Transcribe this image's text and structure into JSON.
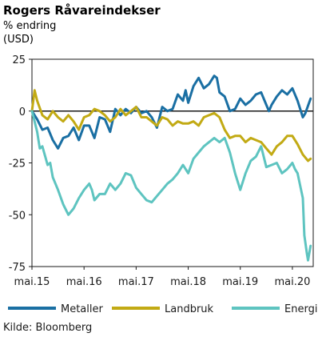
{
  "chart_data": {
    "type": "line",
    "title": "Rogers Råvareindekser",
    "subtitle": "% endring",
    "unit": "(USD)",
    "source": "Kilde: Bloomberg",
    "ylim": [
      -75,
      25
    ],
    "yticks": [
      25,
      0,
      -25,
      -50,
      -75
    ],
    "xlim": [
      2015.0,
      2020.4
    ],
    "xticks": [
      {
        "label": "mai.15",
        "x": 2015.0
      },
      {
        "label": "mai.16",
        "x": 2016.0
      },
      {
        "label": "mai.17",
        "x": 2017.0
      },
      {
        "label": "mai.18",
        "x": 2018.0
      },
      {
        "label": "mai.19",
        "x": 2019.0
      },
      {
        "label": "mai.20",
        "x": 2020.0
      }
    ],
    "legend_position": "bottom",
    "series": [
      {
        "name": "Metaller",
        "color": "#1a6fa3",
        "points": [
          [
            2015.0,
            0
          ],
          [
            2015.1,
            -4
          ],
          [
            2015.2,
            -9
          ],
          [
            2015.3,
            -8
          ],
          [
            2015.4,
            -14
          ],
          [
            2015.5,
            -18
          ],
          [
            2015.6,
            -13
          ],
          [
            2015.7,
            -12
          ],
          [
            2015.8,
            -8
          ],
          [
            2015.9,
            -14
          ],
          [
            2016.0,
            -7
          ],
          [
            2016.1,
            -7
          ],
          [
            2016.2,
            -13
          ],
          [
            2016.3,
            -3
          ],
          [
            2016.4,
            -4
          ],
          [
            2016.5,
            -10
          ],
          [
            2016.6,
            1
          ],
          [
            2016.7,
            -2
          ],
          [
            2016.8,
            1
          ],
          [
            2016.9,
            -1
          ],
          [
            2017.0,
            2
          ],
          [
            2017.1,
            -1
          ],
          [
            2017.2,
            0
          ],
          [
            2017.3,
            -3
          ],
          [
            2017.4,
            -8
          ],
          [
            2017.5,
            2
          ],
          [
            2017.6,
            0
          ],
          [
            2017.7,
            1
          ],
          [
            2017.8,
            8
          ],
          [
            2017.9,
            5
          ],
          [
            2017.95,
            10
          ],
          [
            2018.0,
            4
          ],
          [
            2018.1,
            12
          ],
          [
            2018.2,
            16
          ],
          [
            2018.3,
            11
          ],
          [
            2018.4,
            13
          ],
          [
            2018.5,
            17
          ],
          [
            2018.55,
            16
          ],
          [
            2018.6,
            9
          ],
          [
            2018.7,
            7
          ],
          [
            2018.8,
            0
          ],
          [
            2018.9,
            1
          ],
          [
            2019.0,
            6
          ],
          [
            2019.1,
            3
          ],
          [
            2019.2,
            5
          ],
          [
            2019.3,
            8
          ],
          [
            2019.4,
            9
          ],
          [
            2019.5,
            3
          ],
          [
            2019.55,
            0
          ],
          [
            2019.6,
            3
          ],
          [
            2019.7,
            7
          ],
          [
            2019.8,
            10
          ],
          [
            2019.9,
            8
          ],
          [
            2020.0,
            11
          ],
          [
            2020.1,
            5
          ],
          [
            2020.2,
            -3
          ],
          [
            2020.25,
            -1
          ],
          [
            2020.35,
            6
          ]
        ]
      },
      {
        "name": "Landbruk",
        "color": "#c2aa14",
        "points": [
          [
            2015.0,
            0
          ],
          [
            2015.05,
            10
          ],
          [
            2015.1,
            5
          ],
          [
            2015.2,
            -2
          ],
          [
            2015.3,
            -4
          ],
          [
            2015.4,
            0
          ],
          [
            2015.5,
            -3
          ],
          [
            2015.6,
            -5
          ],
          [
            2015.7,
            -2
          ],
          [
            2015.8,
            -5
          ],
          [
            2015.9,
            -9
          ],
          [
            2016.0,
            -3
          ],
          [
            2016.1,
            -2
          ],
          [
            2016.2,
            1
          ],
          [
            2016.3,
            0
          ],
          [
            2016.4,
            -2
          ],
          [
            2016.5,
            -5
          ],
          [
            2016.6,
            -3
          ],
          [
            2016.7,
            1
          ],
          [
            2016.8,
            -2
          ],
          [
            2016.9,
            0
          ],
          [
            2017.0,
            2
          ],
          [
            2017.1,
            -3
          ],
          [
            2017.2,
            -3
          ],
          [
            2017.3,
            -5
          ],
          [
            2017.4,
            -7
          ],
          [
            2017.5,
            -3
          ],
          [
            2017.6,
            -4
          ],
          [
            2017.7,
            -7
          ],
          [
            2017.8,
            -5
          ],
          [
            2017.9,
            -6
          ],
          [
            2018.0,
            -6
          ],
          [
            2018.1,
            -5
          ],
          [
            2018.2,
            -7
          ],
          [
            2018.3,
            -3
          ],
          [
            2018.4,
            -2
          ],
          [
            2018.5,
            -1
          ],
          [
            2018.6,
            -3
          ],
          [
            2018.7,
            -9
          ],
          [
            2018.8,
            -13
          ],
          [
            2018.9,
            -12
          ],
          [
            2019.0,
            -12
          ],
          [
            2019.1,
            -15
          ],
          [
            2019.2,
            -13
          ],
          [
            2019.3,
            -14
          ],
          [
            2019.4,
            -15
          ],
          [
            2019.5,
            -18
          ],
          [
            2019.6,
            -21
          ],
          [
            2019.7,
            -17
          ],
          [
            2019.8,
            -15
          ],
          [
            2019.9,
            -12
          ],
          [
            2020.0,
            -12
          ],
          [
            2020.1,
            -16
          ],
          [
            2020.2,
            -21
          ],
          [
            2020.3,
            -24
          ],
          [
            2020.35,
            -23
          ]
        ]
      },
      {
        "name": "Energi",
        "color": "#5ec4c0",
        "points": [
          [
            2015.0,
            0
          ],
          [
            2015.05,
            -5
          ],
          [
            2015.1,
            -10
          ],
          [
            2015.15,
            -18
          ],
          [
            2015.2,
            -17
          ],
          [
            2015.3,
            -26
          ],
          [
            2015.35,
            -25
          ],
          [
            2015.4,
            -32
          ],
          [
            2015.5,
            -38
          ],
          [
            2015.6,
            -45
          ],
          [
            2015.7,
            -50
          ],
          [
            2015.8,
            -47
          ],
          [
            2015.9,
            -42
          ],
          [
            2016.0,
            -38
          ],
          [
            2016.1,
            -35
          ],
          [
            2016.15,
            -38
          ],
          [
            2016.2,
            -43
          ],
          [
            2016.3,
            -40
          ],
          [
            2016.4,
            -40
          ],
          [
            2016.5,
            -35
          ],
          [
            2016.6,
            -38
          ],
          [
            2016.7,
            -35
          ],
          [
            2016.8,
            -30
          ],
          [
            2016.9,
            -31
          ],
          [
            2017.0,
            -37
          ],
          [
            2017.1,
            -40
          ],
          [
            2017.2,
            -43
          ],
          [
            2017.3,
            -44
          ],
          [
            2017.4,
            -41
          ],
          [
            2017.5,
            -38
          ],
          [
            2017.6,
            -35
          ],
          [
            2017.7,
            -33
          ],
          [
            2017.8,
            -30
          ],
          [
            2017.9,
            -26
          ],
          [
            2018.0,
            -30
          ],
          [
            2018.1,
            -23
          ],
          [
            2018.2,
            -20
          ],
          [
            2018.3,
            -17
          ],
          [
            2018.4,
            -15
          ],
          [
            2018.5,
            -13
          ],
          [
            2018.6,
            -15
          ],
          [
            2018.7,
            -13
          ],
          [
            2018.8,
            -20
          ],
          [
            2018.9,
            -30
          ],
          [
            2019.0,
            -38
          ],
          [
            2019.1,
            -30
          ],
          [
            2019.2,
            -24
          ],
          [
            2019.3,
            -22
          ],
          [
            2019.4,
            -17
          ],
          [
            2019.5,
            -27
          ],
          [
            2019.6,
            -26
          ],
          [
            2019.7,
            -25
          ],
          [
            2019.8,
            -30
          ],
          [
            2019.9,
            -28
          ],
          [
            2020.0,
            -25
          ],
          [
            2020.05,
            -28
          ],
          [
            2020.1,
            -30
          ],
          [
            2020.15,
            -36
          ],
          [
            2020.2,
            -42
          ],
          [
            2020.23,
            -60
          ],
          [
            2020.28,
            -69
          ],
          [
            2020.3,
            -72
          ],
          [
            2020.35,
            -65
          ]
        ]
      }
    ]
  }
}
